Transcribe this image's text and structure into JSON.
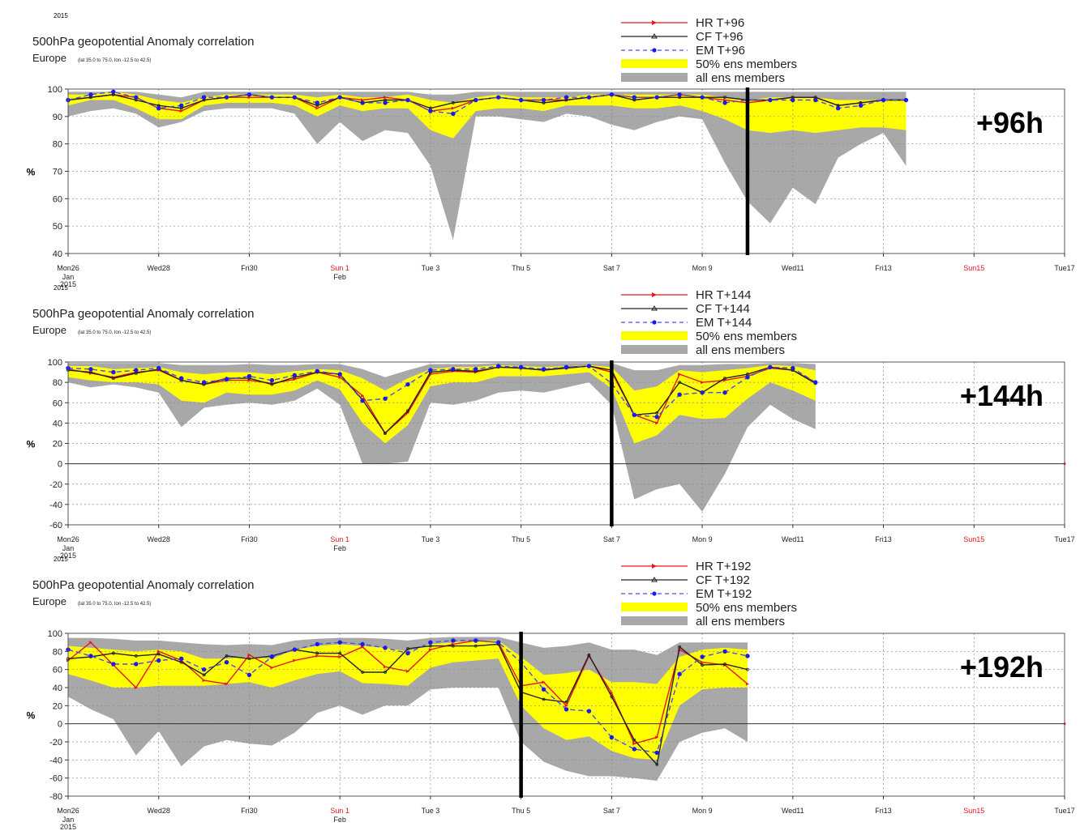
{
  "colors": {
    "hr": "#e8141e",
    "cf": "#222222",
    "em": "#1a1aee",
    "em_dash": "#4a4af0",
    "ens50": "#ffff00",
    "ensall": "#a8a8a8",
    "grid": "#8a8a8a",
    "zero": "#333333",
    "weekend": "#e8141e",
    "marker": "#000000",
    "tag": "#000000"
  },
  "x_ticks": [
    {
      "label": "Mon26",
      "sub": "Jan",
      "red": false
    },
    {
      "label": "Wed28",
      "sub": "",
      "red": false
    },
    {
      "label": "Fri30",
      "sub": "",
      "red": false
    },
    {
      "label": "Sun 1",
      "sub": "Feb",
      "red": true
    },
    {
      "label": "Tue 3",
      "sub": "",
      "red": false
    },
    {
      "label": "Thu 5",
      "sub": "",
      "red": false
    },
    {
      "label": "Sat 7",
      "sub": "",
      "red": false
    },
    {
      "label": "Mon 9",
      "sub": "",
      "red": false
    },
    {
      "label": "Wed11",
      "sub": "",
      "red": false
    },
    {
      "label": "Fri13",
      "sub": "",
      "red": false
    },
    {
      "label": "Sun15",
      "sub": "",
      "red": true
    },
    {
      "label": "Tue17",
      "sub": "",
      "red": false
    }
  ],
  "chart_data": [
    {
      "type": "line",
      "year": "2015",
      "title": "500hPa geopotential  Anomaly correlation",
      "subtitle": "Europe",
      "subtitle_small": "(lat  35.0 to 75.0, lon  -12.5 to  42.5)",
      "ylabel": "%",
      "ylim": [
        40,
        100
      ],
      "yticks": [
        40,
        50,
        60,
        70,
        80,
        90,
        100
      ],
      "zero_line": false,
      "x_year_label": "2015",
      "lead_label": "+96h",
      "verification_marker": 15.0,
      "legend": [
        "HR T+96",
        "CF T+96",
        "EM T+96",
        "50% ens members",
        "all ens members"
      ],
      "x": [
        0,
        0.5,
        1,
        1.5,
        2,
        2.5,
        3,
        3.5,
        4,
        4.5,
        5,
        5.5,
        6,
        6.5,
        7,
        7.5,
        8,
        8.5,
        9,
        9.5,
        10,
        10.5,
        11,
        11.5,
        12,
        12.5,
        13,
        13.5,
        14,
        14.5,
        15,
        15.5,
        16,
        16.5,
        17,
        17.5,
        18,
        18.5
      ],
      "series": [
        {
          "name": "HR T+96",
          "values": [
            96,
            97,
            98,
            97,
            93,
            92,
            96,
            97,
            97,
            97,
            97,
            93,
            97,
            96,
            97,
            96,
            92,
            93,
            96,
            97,
            96,
            96,
            96,
            97,
            98,
            97,
            97,
            98,
            97,
            96,
            95,
            96,
            97,
            97,
            94,
            95,
            96,
            96
          ]
        },
        {
          "name": "CF T+96",
          "values": [
            96,
            97,
            98,
            96,
            94,
            93,
            96,
            97,
            98,
            97,
            97,
            94,
            97,
            95,
            96,
            96,
            93,
            95,
            96,
            97,
            96,
            95,
            96,
            97,
            98,
            96,
            97,
            97,
            97,
            97,
            96,
            96,
            97,
            97,
            94,
            95,
            96,
            96
          ]
        },
        {
          "name": "EM T+96",
          "values": [
            96,
            98,
            99,
            97,
            93,
            94,
            97,
            97,
            98,
            97,
            97,
            95,
            97,
            95,
            95,
            96,
            92,
            91,
            96,
            97,
            96,
            96,
            97,
            97,
            98,
            97,
            97,
            98,
            97,
            95,
            96,
            96,
            96,
            96,
            93,
            94,
            96,
            96
          ]
        }
      ],
      "ens50": {
        "lo": [
          94,
          96,
          96,
          93,
          89,
          89,
          94,
          95,
          95,
          95,
          94,
          90,
          94,
          92,
          93,
          93,
          85,
          82,
          92,
          93,
          93,
          92,
          94,
          94,
          94,
          93,
          93,
          94,
          92,
          89,
          85,
          84,
          85,
          84,
          85,
          86,
          86,
          85
        ],
        "hi": [
          98,
          98,
          99,
          98,
          96,
          95,
          97,
          98,
          98,
          98,
          98,
          97,
          98,
          97,
          97,
          98,
          96,
          95,
          97,
          98,
          97,
          97,
          97,
          98,
          98,
          98,
          98,
          98,
          98,
          97,
          96,
          97,
          97,
          97,
          96,
          96,
          96,
          96
        ]
      },
      "ensall": {
        "lo": [
          90,
          92,
          93,
          91,
          86,
          88,
          92,
          93,
          93,
          93,
          91,
          80,
          88,
          81,
          85,
          84,
          72,
          45,
          90,
          90,
          89,
          88,
          91,
          90,
          87,
          85,
          88,
          90,
          89,
          73,
          59,
          51,
          64,
          58,
          75,
          80,
          84,
          72
        ],
        "hi": [
          99,
          99,
          99,
          99,
          98,
          97,
          99,
          99,
          99,
          99,
          99,
          99,
          99,
          99,
          99,
          99,
          98,
          98,
          99,
          99,
          99,
          99,
          99,
          99,
          99,
          99,
          99,
          99,
          99,
          99,
          99,
          99,
          99,
          99,
          99,
          99,
          99,
          99
        ]
      }
    },
    {
      "type": "line",
      "year": "2015",
      "title": "500hPa geopotential  Anomaly correlation",
      "subtitle": "Europe",
      "subtitle_small": "(lat  35.0 to 75.0, lon  -12.5 to  42.5)",
      "ylabel": "%",
      "ylim": [
        -60,
        100
      ],
      "yticks": [
        -60,
        -40,
        -20,
        0,
        20,
        40,
        60,
        80,
        100
      ],
      "zero_line": true,
      "x_year_label": "2015",
      "lead_label": "+144h",
      "verification_marker": 12.0,
      "legend": [
        "HR T+144",
        "CF T+144",
        "EM T+144",
        "50% ens members",
        "all ens members"
      ],
      "x": [
        0,
        0.5,
        1,
        1.5,
        2,
        2.5,
        3,
        3.5,
        4,
        4.5,
        5,
        5.5,
        6,
        6.5,
        7,
        7.5,
        8,
        8.5,
        9,
        9.5,
        10,
        10.5,
        11,
        11.5,
        12,
        12.5,
        13,
        13.5,
        14,
        14.5,
        15,
        15.5,
        16,
        16.5
      ],
      "series": [
        {
          "name": "HR T+144",
          "values": [
            93,
            89,
            85,
            90,
            92,
            82,
            78,
            82,
            82,
            79,
            83,
            90,
            85,
            67,
            30,
            50,
            88,
            91,
            90,
            95,
            94,
            92,
            95,
            96,
            90,
            48,
            40,
            88,
            80,
            82,
            86,
            94,
            92,
            80
          ]
        },
        {
          "name": "CF T+144",
          "values": [
            92,
            90,
            84,
            89,
            93,
            82,
            78,
            84,
            84,
            78,
            85,
            90,
            88,
            63,
            30,
            52,
            90,
            92,
            91,
            95,
            94,
            92,
            94,
            96,
            92,
            48,
            50,
            80,
            70,
            84,
            88,
            95,
            92,
            79
          ]
        },
        {
          "name": "EM T+144",
          "values": [
            94,
            93,
            90,
            92,
            94,
            84,
            80,
            83,
            86,
            82,
            87,
            91,
            88,
            62,
            64,
            78,
            92,
            93,
            93,
            96,
            95,
            93,
            95,
            96,
            79,
            48,
            46,
            68,
            70,
            70,
            85,
            95,
            94,
            80
          ]
        }
      ],
      "ens50": {
        "lo": [
          85,
          82,
          80,
          80,
          78,
          62,
          60,
          70,
          68,
          68,
          72,
          82,
          73,
          40,
          20,
          38,
          76,
          80,
          80,
          86,
          86,
          86,
          88,
          90,
          74,
          20,
          28,
          48,
          44,
          45,
          64,
          80,
          72,
          62
        ],
        "hi": [
          96,
          96,
          93,
          94,
          95,
          90,
          88,
          90,
          90,
          88,
          91,
          93,
          92,
          84,
          72,
          84,
          93,
          95,
          95,
          97,
          96,
          95,
          96,
          97,
          95,
          72,
          76,
          92,
          90,
          92,
          94,
          97,
          96,
          92
        ]
      },
      "ensall": {
        "lo": [
          80,
          75,
          78,
          75,
          70,
          36,
          55,
          58,
          60,
          58,
          62,
          74,
          58,
          0,
          0,
          2,
          60,
          58,
          62,
          70,
          72,
          70,
          75,
          80,
          58,
          -35,
          -25,
          -20,
          -47,
          -10,
          36,
          58,
          44,
          34
        ],
        "hi": [
          99,
          99,
          99,
          99,
          99,
          97,
          97,
          97,
          98,
          97,
          97,
          98,
          98,
          93,
          85,
          92,
          98,
          98,
          98,
          99,
          99,
          99,
          99,
          99,
          99,
          92,
          92,
          97,
          97,
          98,
          98,
          99,
          99,
          98
        ]
      }
    },
    {
      "type": "line",
      "year": "2015",
      "title": "500hPa geopotential  Anomaly correlation",
      "subtitle": "Europe",
      "subtitle_small": "(lat  35.0 to 75.0, lon  -12.5 to  42.5)",
      "ylabel": "%",
      "ylim": [
        -80,
        100
      ],
      "yticks": [
        -80,
        -60,
        -40,
        -20,
        0,
        20,
        40,
        60,
        80,
        100
      ],
      "zero_line": true,
      "x_year_label": "2015",
      "lead_label": "+192h",
      "verification_marker": 10.0,
      "legend": [
        "HR T+192",
        "CF T+192",
        "EM T+192",
        "50% ens members",
        "all ens members"
      ],
      "x": [
        0,
        0.5,
        1,
        1.5,
        2,
        2.5,
        3,
        3.5,
        4,
        4.5,
        5,
        5.5,
        6,
        6.5,
        7,
        7.5,
        8,
        8.5,
        9,
        9.5,
        10,
        10.5,
        11,
        11.5,
        12,
        12.5,
        13,
        13.5,
        14,
        14.5,
        15
      ],
      "series": [
        {
          "name": "HR T+192",
          "values": [
            70,
            90,
            65,
            40,
            80,
            70,
            48,
            44,
            76,
            62,
            70,
            75,
            74,
            85,
            63,
            58,
            82,
            88,
            92,
            90,
            42,
            46,
            20,
            75,
            34,
            -22,
            -15,
            82,
            68,
            65,
            44
          ]
        },
        {
          "name": "CF T+192",
          "values": [
            72,
            74,
            78,
            75,
            77,
            68,
            54,
            75,
            72,
            75,
            82,
            78,
            78,
            57,
            57,
            83,
            86,
            86,
            86,
            88,
            35,
            27,
            24,
            76,
            30,
            -18,
            -45,
            85,
            65,
            66,
            60
          ]
        },
        {
          "name": "EM T+192",
          "values": [
            82,
            75,
            66,
            66,
            70,
            72,
            60,
            68,
            54,
            74,
            82,
            88,
            90,
            88,
            84,
            78,
            90,
            92,
            92,
            90,
            68,
            38,
            16,
            14,
            -15,
            -28,
            -32,
            55,
            74,
            80,
            75
          ]
        }
      ],
      "ens50": {
        "lo": [
          55,
          48,
          40,
          40,
          42,
          42,
          42,
          44,
          46,
          40,
          48,
          55,
          58,
          45,
          44,
          42,
          62,
          68,
          70,
          72,
          20,
          -5,
          -18,
          -14,
          -30,
          -38,
          -40,
          20,
          38,
          40,
          40
        ],
        "hi": [
          86,
          84,
          82,
          80,
          82,
          80,
          72,
          72,
          74,
          72,
          82,
          86,
          88,
          86,
          84,
          80,
          88,
          90,
          92,
          92,
          74,
          54,
          56,
          60,
          46,
          46,
          44,
          74,
          82,
          84,
          82
        ]
      },
      "ensall": {
        "lo": [
          30,
          16,
          5,
          -35,
          -8,
          -47,
          -25,
          -18,
          -22,
          -24,
          -10,
          12,
          20,
          10,
          20,
          20,
          38,
          40,
          40,
          40,
          -20,
          -42,
          -52,
          -58,
          -58,
          -60,
          -63,
          -20,
          -10,
          -5,
          -20
        ],
        "hi": [
          95,
          95,
          94,
          92,
          92,
          90,
          88,
          87,
          88,
          87,
          92,
          94,
          95,
          95,
          94,
          92,
          95,
          96,
          96,
          96,
          90,
          84,
          86,
          90,
          82,
          82,
          76,
          90,
          90,
          90,
          90
        ]
      }
    }
  ]
}
